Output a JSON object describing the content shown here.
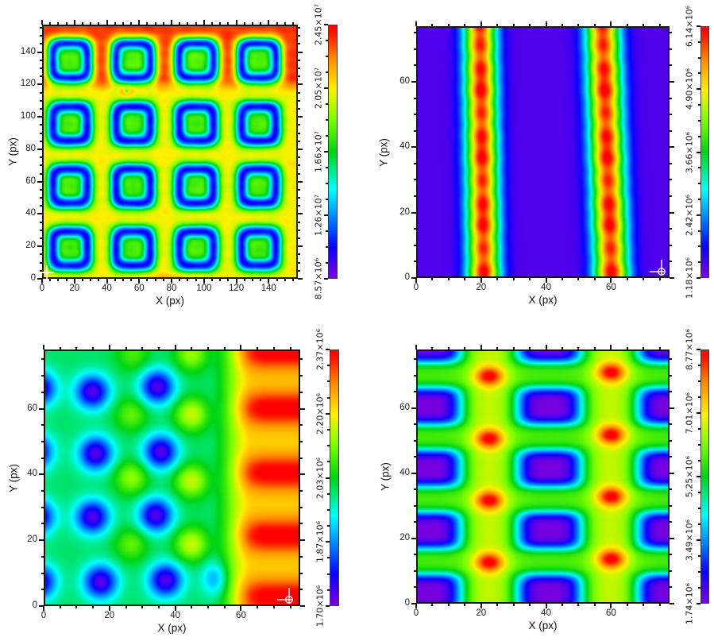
{
  "figure": {
    "background": "#ffffff",
    "text_color": "#111111",
    "frame_color": "#161616"
  },
  "colormap": {
    "stops": [
      [
        0.0,
        "#7a00df"
      ],
      [
        0.12,
        "#0b00ff"
      ],
      [
        0.22,
        "#0070ff"
      ],
      [
        0.35,
        "#00ffff"
      ],
      [
        0.5,
        "#00d414"
      ],
      [
        0.63,
        "#7dff00"
      ],
      [
        0.75,
        "#fff000"
      ],
      [
        0.87,
        "#ff8c00"
      ],
      [
        0.97,
        "#ff1400"
      ],
      [
        1.0,
        "#ff0000"
      ]
    ]
  },
  "chart_data": [
    {
      "id": "top-left",
      "type": "heatmap",
      "xlabel": "X (px)",
      "ylabel": "Y (px)",
      "x_max": 158,
      "y_max": 157,
      "tick_major": 20,
      "tick_minor": 5,
      "x_tick_labels": [
        0,
        20,
        40,
        60,
        80,
        100,
        120,
        140
      ],
      "y_tick_labels": [
        0,
        20,
        40,
        60,
        80,
        100,
        120,
        140
      ],
      "colorbar": {
        "vmin": 8570000.0,
        "vmax": 24500000.0,
        "labels": [
          "8.57×10⁶",
          "1.26×10⁷",
          "1.66×10⁷",
          "2.05×10⁷",
          "2.45×10⁷"
        ]
      },
      "marker": {
        "shape": "plus",
        "x": 3,
        "y": 4
      },
      "pattern": {
        "kind": "square_ring_grid",
        "background": 20500000.0,
        "top_zone": {
          "edge": 121.5,
          "amp": 3100000.0,
          "wave": 2.5,
          "wave_period": 39.3,
          "wave_phase": 16.5
        },
        "ring_cols": [
          16.5,
          56,
          95.5,
          134.5
        ],
        "ring_rows": [
          18,
          57,
          96,
          135.5
        ],
        "ring_radius": 10.8,
        "ring_width": 4.3,
        "ring_depth": 9600000.0,
        "center_depth": 2800000.0,
        "center_sigma": 7.5,
        "noise_amp": 200000.0,
        "scanline": {
          "y": 71,
          "amp": 220000.0,
          "sigma": 1.5
        },
        "spot": {
          "x": 52,
          "y": 116.5,
          "halo": 2200000.0,
          "halo_sigma": 3.8,
          "core": 4500000.0,
          "core_sigma": 1.7
        },
        "bottom_glow": {
          "x": 78,
          "sx": 26,
          "sy": 2.2,
          "amp": 1200000.0
        }
      }
    },
    {
      "id": "top-right",
      "type": "heatmap",
      "xlabel": "X (px)",
      "ylabel": "Y (px)",
      "x_max": 78,
      "y_max": 77,
      "tick_major": 20,
      "tick_minor": 5,
      "x_tick_labels": [
        0,
        20,
        40,
        60
      ],
      "y_tick_labels": [
        0,
        20,
        40,
        60
      ],
      "colorbar": {
        "vmin": 1180000.0,
        "vmax": 6140000.0,
        "labels": [
          "1.18×10⁶",
          "2.42×10⁶",
          "3.66×10⁶",
          "4.90×10⁶",
          "6.14×10⁶"
        ]
      },
      "marker": {
        "shape": "circle-cross",
        "x": 75.5,
        "y": 2
      },
      "pattern": {
        "kind": "vertical_stripes",
        "background": 1400000.0,
        "stripes": [
          {
            "x_bottom": 20.6,
            "x_top": 19.4,
            "sigma": 5.0,
            "amp": 4550000.0
          },
          {
            "x_bottom": 60.4,
            "x_top": 57.6,
            "sigma": 5.3,
            "amp": 4550000.0
          }
        ]
      }
    },
    {
      "id": "bottom-left",
      "type": "heatmap",
      "xlabel": "X (px)",
      "ylabel": "Y (px)",
      "x_max": 78,
      "y_max": 78,
      "tick_major": 20,
      "tick_minor": 5,
      "x_tick_labels": [
        0,
        20,
        40,
        60
      ],
      "y_tick_labels": [
        0,
        20,
        40,
        60
      ],
      "colorbar": {
        "vmin": 1700000.0,
        "vmax": 2370000.0,
        "labels": [
          "1.70×10⁶",
          "1.87×10⁶",
          "2.03×10⁶",
          "2.20×10⁶",
          "2.37×10⁶"
        ]
      },
      "marker": {
        "shape": "circle-cross",
        "x": 74.5,
        "y": 2
      },
      "pattern": {
        "kind": "dot_lattice",
        "background": 2000000.0,
        "dots": [
          [
            -2,
            7
          ],
          [
            17,
            7
          ],
          [
            37,
            7.5
          ],
          [
            55,
            8
          ],
          [
            -2.5,
            27
          ],
          [
            14.5,
            27
          ],
          [
            34,
            27.5
          ],
          [
            -3,
            47
          ],
          [
            15.5,
            46.5
          ],
          [
            35.5,
            47
          ],
          [
            -2,
            66.5
          ],
          [
            14.5,
            65.5
          ],
          [
            34.5,
            67
          ]
        ],
        "dot_amp": 275000.0,
        "dot_sigma": 5.2,
        "dot_fade_start": 46,
        "dot_fade_end": 60,
        "bumps": [
          [
            26.5,
            18.5,
            0.6
          ],
          [
            45,
            18.5,
            1
          ],
          [
            26.5,
            39,
            0.8
          ],
          [
            45,
            38,
            1
          ],
          [
            26.5,
            58.5,
            0.6
          ],
          [
            45,
            58.5,
            1
          ],
          [
            27,
            77,
            0.5
          ],
          [
            45,
            77,
            0.8
          ]
        ],
        "bump_amp": 170000.0,
        "bump_sigma": 5,
        "ramp": {
          "start": 50,
          "end": 64,
          "amp": 220000.0
        },
        "stripes": {
          "rows": [
            2.4,
            21.3,
            40.6,
            60.4,
            77.7
          ],
          "amp": 160000.0,
          "sigma": 5.4,
          "gate_start": 54,
          "gate_end": 68
        }
      }
    },
    {
      "id": "bottom-right",
      "type": "heatmap",
      "xlabel": "X (px)",
      "ylabel": "Y (px)",
      "x_max": 78,
      "y_max": 78,
      "tick_major": 20,
      "tick_minor": 5,
      "x_tick_labels": [
        0,
        20,
        40,
        60
      ],
      "y_tick_labels": [
        0,
        20,
        40,
        60
      ],
      "colorbar": {
        "vmin": 1740000.0,
        "vmax": 8770000.0,
        "labels": [
          "1.74×10⁶",
          "3.49×10⁶",
          "5.25×10⁶",
          "7.01×10⁶",
          "8.77×10⁶"
        ]
      },
      "marker": null,
      "pattern": {
        "kind": "blob_grid",
        "background": 5750000.0,
        "column_glow": {
          "cols": [
            22.3,
            60.3
          ],
          "sigma": 7.5,
          "amp": 850000.0
        },
        "wells": {
          "cols": [
            3.5,
            41,
            78.5
          ],
          "rows": [
            3,
            22.3,
            41.6,
            60.9,
            80.2
          ],
          "rx": 10.5,
          "ry": 6.0,
          "depth": 4000000.0
        },
        "hotspots": [
          [
            22.3,
            12.4
          ],
          [
            22.3,
            31.6
          ],
          [
            22.3,
            50.8
          ],
          [
            22.3,
            70.2
          ],
          [
            60.3,
            13.4
          ],
          [
            60.3,
            32.8
          ],
          [
            60.3,
            52
          ],
          [
            60.3,
            71.4
          ]
        ],
        "hotspot_amp": 2300000.0,
        "hotspot_sx": 4.6,
        "hotspot_sy": 3.0
      }
    }
  ]
}
